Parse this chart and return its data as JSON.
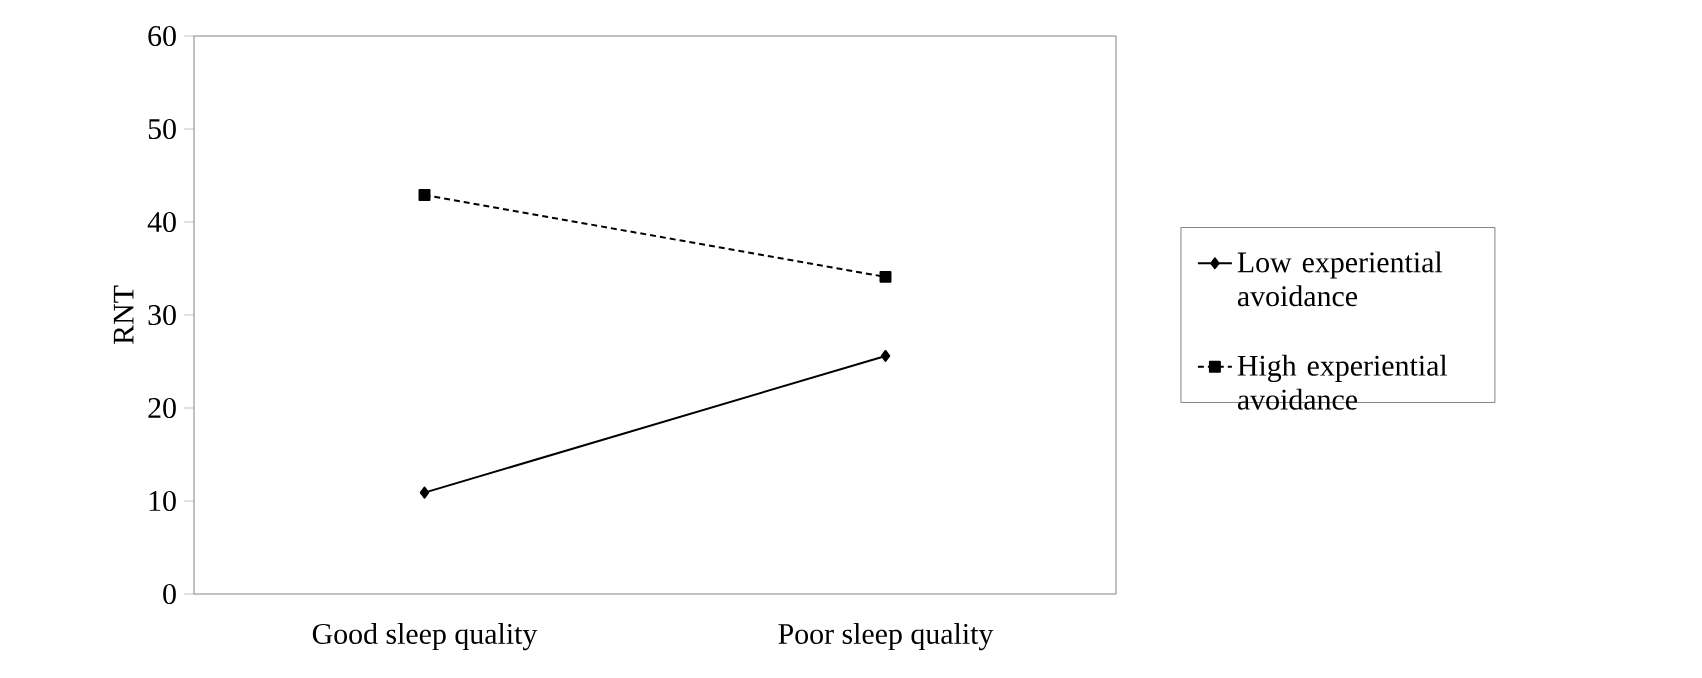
{
  "chart_data": {
    "type": "line",
    "ylabel": "RNT",
    "categories": [
      "Good sleep quality",
      "Poor sleep quality"
    ],
    "series": [
      {
        "name": "Low experiential avoidance",
        "color": "#000000",
        "values": [
          10.9,
          25.6
        ],
        "marker": "diamond",
        "line_style": "solid"
      },
      {
        "name": "High experiential avoidance",
        "color": "#000000",
        "values": [
          42.9,
          34.1
        ],
        "marker": "square",
        "line_style": "dashed"
      }
    ],
    "ylim": [
      0,
      60
    ],
    "yticks": [
      0,
      10,
      20,
      30,
      40,
      50,
      60
    ],
    "legend": "right",
    "grid": false
  }
}
